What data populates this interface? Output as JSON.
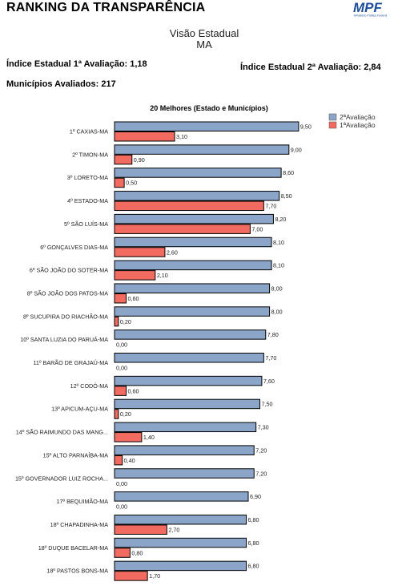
{
  "header": {
    "title": "RANKING DA TRANSPARÊNCIA",
    "logo_text": "MPF",
    "logo_subtext": "Ministério Público Federal",
    "subtitle_line1": "Visão Estadual",
    "subtitle_line2": "MA",
    "index1_label": "Índice Estadual 1ª Avaliação: 1,18",
    "index2_label": "Índice Estadual 2ª Avaliação: 2,84",
    "municipios_label": "Municípios Avaliados: 217"
  },
  "colors": {
    "series_2": "#8ba5c9",
    "series_1": "#f26b61",
    "outline": "#000000",
    "logo": "#1f4e9a"
  },
  "chart_data": {
    "type": "bar",
    "orientation": "horizontal",
    "title": "20 Melhores (Estado e Municípios)",
    "legend_position": "top-right",
    "xlim": [
      0,
      10
    ],
    "grid": false,
    "categories": [
      "1º CAXIAS-MA",
      "2º TIMON-MA",
      "3º LORETO-MA",
      "4º ESTADO-MA",
      "5º SÃO LUÍS-MA",
      "6º GONÇALVES DIAS-MA",
      "6º SÃO JOÃO DO SOTER-MA",
      "8º SÃO JOÃO DOS PATOS-MA",
      "8º SUCUPIRA DO RIACHÃO-MA",
      "10º SANTA LUZIA DO PARUÁ-MA",
      "11º BARÃO DE GRAJAÚ-MA",
      "12º CODÓ-MA",
      "13º APICUM-AÇU-MA",
      "14º SÃO RAIMUNDO DAS MANG...",
      "15º ALTO PARNAÍBA-MA",
      "15º GOVERNADOR LUIZ ROCHA...",
      "17º BEQUIMÃO-MA",
      "18º CHAPADINHA-MA",
      "18º DUQUE BACELAR-MA",
      "18º PASTOS BONS-MA"
    ],
    "series": [
      {
        "name": "2ªAvaliação",
        "values": [
          9.5,
          9.0,
          8.6,
          8.5,
          8.2,
          8.1,
          8.1,
          8.0,
          8.0,
          7.8,
          7.7,
          7.6,
          7.5,
          7.3,
          7.2,
          7.2,
          6.9,
          6.8,
          6.8,
          6.8
        ],
        "labels": [
          "9,50",
          "9,00",
          "8,60",
          "8,50",
          "8,20",
          "8,10",
          "8,10",
          "8,00",
          "8,00",
          "7,80",
          "7,70",
          "7,60",
          "7,50",
          "7,30",
          "7,20",
          "7,20",
          "6,90",
          "6,80",
          "6,80",
          "6,80"
        ]
      },
      {
        "name": "1ªAvaliação",
        "values": [
          3.1,
          0.9,
          0.5,
          7.7,
          7.0,
          2.6,
          2.1,
          0.6,
          0.2,
          0.0,
          0.0,
          0.6,
          0.2,
          1.4,
          0.4,
          0.0,
          0.0,
          2.7,
          0.8,
          1.7
        ],
        "labels": [
          "3,10",
          "0,90",
          "0,50",
          "7,70",
          "7,00",
          "2,60",
          "2,10",
          "0,60",
          "0,20",
          "0,00",
          "0,00",
          "0,60",
          "0,20",
          "1,40",
          "0,40",
          "0,00",
          "0,00",
          "2,70",
          "0,80",
          "1,70"
        ]
      }
    ]
  }
}
